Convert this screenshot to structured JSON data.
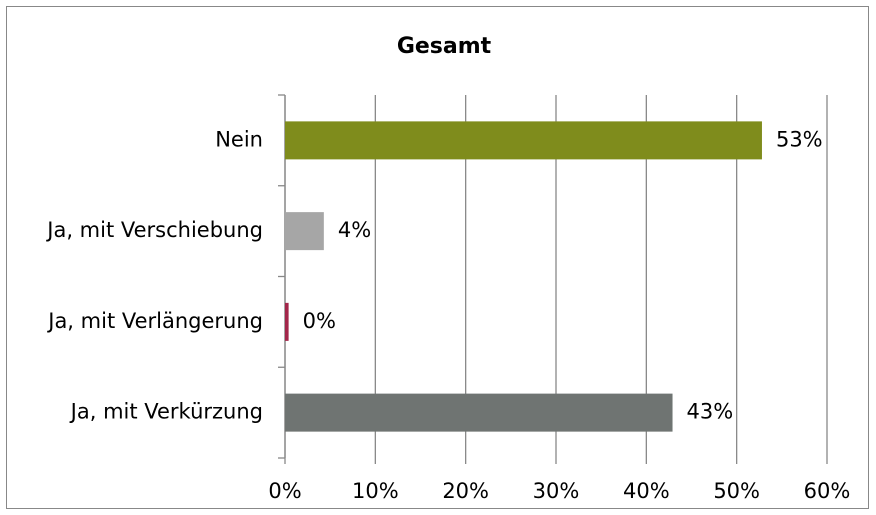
{
  "chart_data": {
    "type": "hbar",
    "title": "Gesamt",
    "categories": [
      "Nein",
      "Ja, mit Verschiebung",
      "Ja, mit Verlängerung",
      "Ja, mit Verkürzung"
    ],
    "values": [
      52.8,
      4.3,
      0.4,
      42.9
    ],
    "value_labels": [
      "53%",
      "4%",
      "0%",
      "43%"
    ],
    "colors": [
      "#7f8c1c",
      "#a6a6a6",
      "#a3264a",
      "#6f7472"
    ],
    "xlim": [
      0,
      60
    ],
    "xticks": [
      {
        "value": 0,
        "label": "0%"
      },
      {
        "value": 10,
        "label": "10%"
      },
      {
        "value": 20,
        "label": "20%"
      },
      {
        "value": 30,
        "label": "30%"
      },
      {
        "value": 40,
        "label": "40%"
      },
      {
        "value": 50,
        "label": "50%"
      },
      {
        "value": 60,
        "label": "60%"
      }
    ],
    "grid": true
  }
}
